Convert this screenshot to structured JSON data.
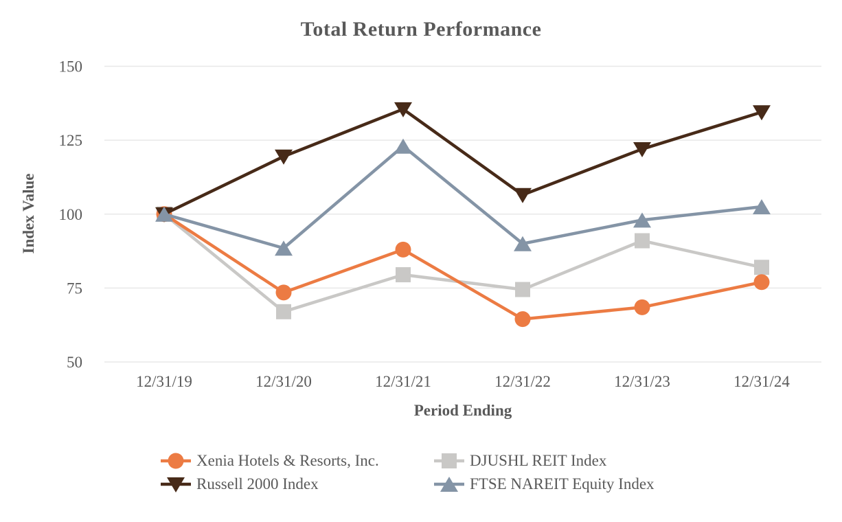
{
  "chart_data": {
    "type": "line",
    "title": "Total Return Performance",
    "xlabel": "Period Ending",
    "ylabel": "Index Value",
    "categories": [
      "12/31/19",
      "12/31/20",
      "12/31/21",
      "12/31/22",
      "12/31/23",
      "12/31/24"
    ],
    "ylim": [
      50,
      150
    ],
    "yticks": [
      150,
      125,
      100,
      75,
      50
    ],
    "grid": "horizontal-only",
    "legend_position": "bottom-two-columns",
    "series": [
      {
        "name": "Xenia Hotels & Resorts, Inc.",
        "marker": "circle",
        "color": "#EC7B43",
        "values": [
          100,
          73.5,
          88,
          64.5,
          68.5,
          77
        ]
      },
      {
        "name": "DJUSHL REIT Index",
        "marker": "square",
        "color": "#C9C8C6",
        "values": [
          100,
          67,
          79.5,
          74.5,
          91,
          82
        ]
      },
      {
        "name": "Russell 2000 Index",
        "marker": "triangle-down",
        "color": "#472A18",
        "values": [
          100,
          119.5,
          135.5,
          106.5,
          122,
          134.5
        ]
      },
      {
        "name": "FTSE NAREIT Equity Index",
        "marker": "triangle-up",
        "color": "#8494A6",
        "values": [
          100,
          88.5,
          123,
          90,
          98,
          102.5
        ]
      }
    ],
    "draw_order": [
      1,
      0,
      2,
      3
    ]
  },
  "colors": {
    "text": "#595959",
    "gridline": "#E8E8E8",
    "background": "#FFFFFF"
  }
}
